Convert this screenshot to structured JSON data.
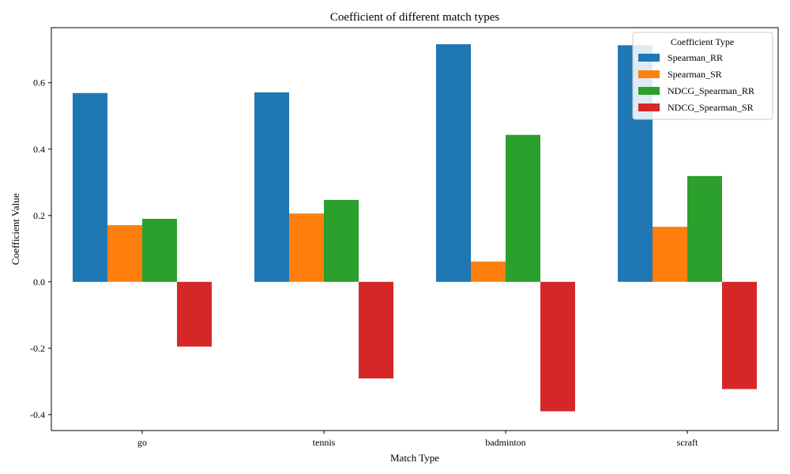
{
  "chart_data": {
    "type": "bar",
    "title": "Coefficient of different match types",
    "xlabel": "Match Type",
    "ylabel": "Coefficient Value",
    "categories": [
      "go",
      "tennis",
      "badminton",
      "scraft"
    ],
    "series": [
      {
        "name": "Spearman_RR",
        "color": "#1f77b4",
        "values": [
          0.569,
          0.571,
          0.716,
          0.713
        ]
      },
      {
        "name": "Spearman_SR",
        "color": "#ff7f0e",
        "values": [
          0.171,
          0.206,
          0.061,
          0.166
        ]
      },
      {
        "name": "NDCG_Spearman_RR",
        "color": "#2ca02c",
        "values": [
          0.19,
          0.247,
          0.443,
          0.319
        ]
      },
      {
        "name": "NDCG_Spearman_SR",
        "color": "#d62728",
        "values": [
          -0.195,
          -0.291,
          -0.39,
          -0.323
        ]
      }
    ],
    "ylim": [
      -0.448,
      0.766
    ],
    "yticks": [
      -0.4,
      -0.2,
      0.0,
      0.2,
      0.4,
      0.6
    ],
    "ytick_labels": [
      "-0.4",
      "-0.2",
      "0.0",
      "0.2",
      "0.4",
      "0.6"
    ],
    "legend": {
      "title": "Coefficient Type",
      "placement": "top-right"
    },
    "grid": false
  }
}
